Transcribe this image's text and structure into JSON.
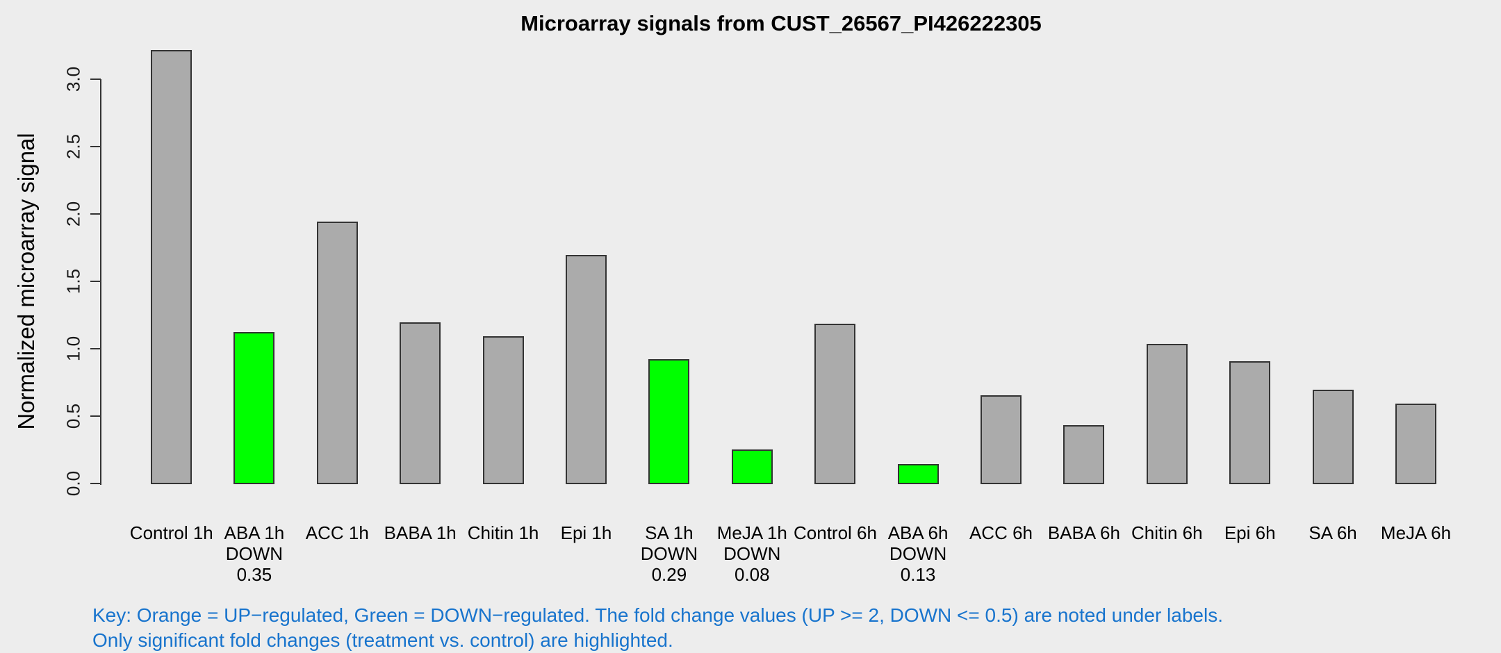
{
  "colors": {
    "background": "#EDEDED",
    "bar_fill_gray": "#ABABAB",
    "bar_border": "#333333",
    "down_regulated_green": "#00FF00",
    "up_regulated_orange": "#FFA500",
    "key_text_blue": "#1874CD"
  },
  "key": {
    "lines": [
      "Key: Orange = UP−regulated, Green = DOWN−regulated. The fold change values (UP >= 2, DOWN <= 0.5) are noted under labels.",
      "Only significant fold changes (treatment vs. control) are highlighted."
    ]
  },
  "chart_data": {
    "type": "bar",
    "title": "Microarray signals from CUST_26567_PI426222305",
    "xlabel": "",
    "ylabel": "Normalized microarray signal",
    "ylim": [
      0,
      3.0
    ],
    "yticks": [
      0.0,
      0.5,
      1.0,
      1.5,
      2.0,
      2.5,
      3.0
    ],
    "ytick_labels": [
      "0.0",
      "0.5",
      "1.0",
      "1.5",
      "2.0",
      "2.5",
      "3.0"
    ],
    "grid": false,
    "legend_position": "none",
    "categories": [
      "Control 1h",
      "ABA 1h",
      "ACC 1h",
      "BABA 1h",
      "Chitin 1h",
      "Epi 1h",
      "SA 1h",
      "MeJA 1h",
      "Control 6h",
      "ABA 6h",
      "ACC 6h",
      "BABA 6h",
      "Chitin 6h",
      "Epi 6h",
      "SA 6h",
      "MeJA 6h"
    ],
    "values": [
      3.22,
      1.13,
      1.95,
      1.2,
      1.1,
      1.7,
      0.93,
      0.26,
      1.19,
      0.15,
      0.66,
      0.44,
      1.04,
      0.91,
      0.7,
      0.6
    ],
    "regulated": [
      null,
      "DOWN",
      null,
      null,
      null,
      null,
      "DOWN",
      "DOWN",
      null,
      "DOWN",
      null,
      null,
      null,
      null,
      null,
      null
    ],
    "fold_changes": [
      null,
      "0.35",
      null,
      null,
      null,
      null,
      "0.29",
      "0.08",
      null,
      "0.13",
      null,
      null,
      null,
      null,
      null,
      null
    ]
  }
}
